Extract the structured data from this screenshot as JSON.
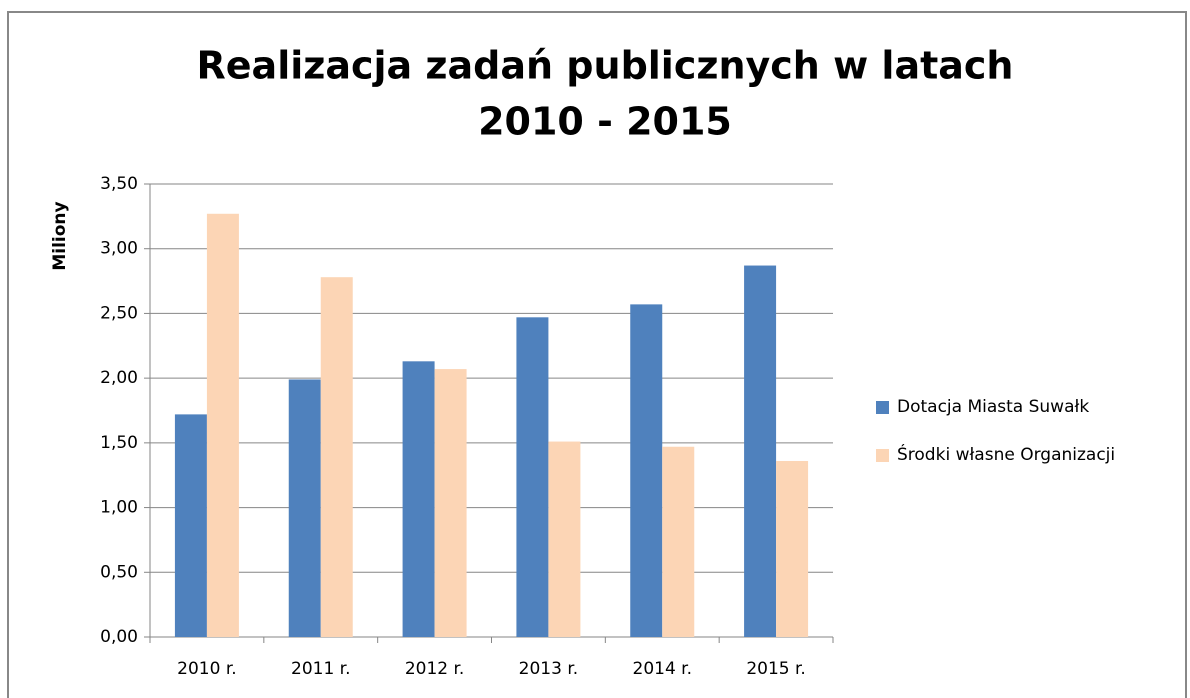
{
  "chart_data": {
    "type": "bar",
    "title": [
      "Realizacja zadań publicznych w latach",
      "2010 - 2015"
    ],
    "y_label": "Miliony",
    "categories": [
      "2010 r.",
      "2011 r.",
      "2012 r.",
      "2013 r.",
      "2014 r.",
      "2015 r."
    ],
    "series": [
      {
        "name": "Dotacja Miasta Suwałk",
        "color": "#4f81bd",
        "values": [
          1.72,
          1.99,
          2.13,
          2.47,
          2.57,
          2.87
        ]
      },
      {
        "name": "Środki własne Organizacji",
        "color": "#fcd5b5",
        "values": [
          3.27,
          2.78,
          2.07,
          1.51,
          1.47,
          1.36
        ]
      }
    ],
    "ylim": [
      0,
      3.5
    ],
    "yticks": [
      {
        "value": 0,
        "label": "0,00"
      },
      {
        "value": 0.5,
        "label": "0,50"
      },
      {
        "value": 1,
        "label": "1,00"
      },
      {
        "value": 1.5,
        "label": "1,50"
      },
      {
        "value": 2,
        "label": "2,00"
      },
      {
        "value": 2.5,
        "label": "2,50"
      },
      {
        "value": 3,
        "label": "3,00"
      },
      {
        "value": 3.5,
        "label": "3,50"
      }
    ],
    "grid": true,
    "legend": "right"
  }
}
